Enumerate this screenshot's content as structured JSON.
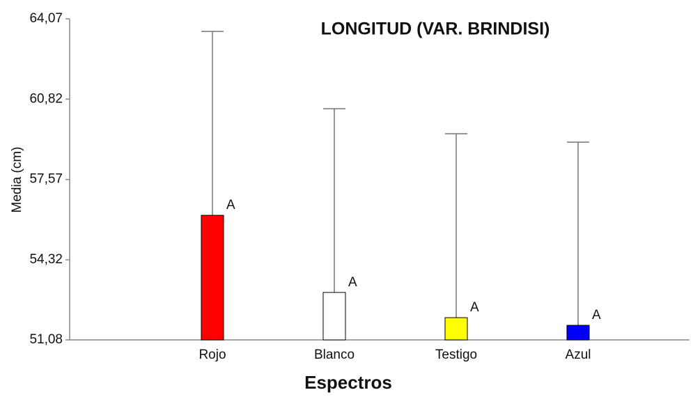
{
  "chart_data": {
    "type": "bar",
    "title": "LONGITUD (VAR. BRINDISI)",
    "x_label": "Espectros",
    "y_label": "Media (cm)",
    "categories": [
      "Rojo",
      "Blanco",
      "Testigo",
      "Azul"
    ],
    "values": [
      56.12,
      53.0,
      51.98,
      51.67
    ],
    "errors": [
      7.44,
      7.43,
      7.44,
      7.41
    ],
    "annotations": [
      "A",
      "A",
      "A",
      "A"
    ],
    "colors": [
      "#ff0000",
      "#ffffff",
      "#ffff00",
      "#0000ff"
    ],
    "ylim": [
      51.08,
      64.07
    ],
    "yticks": [
      {
        "value": 51.08,
        "label": "51,08"
      },
      {
        "value": 54.32,
        "label": "54,32"
      },
      {
        "value": 57.57,
        "label": "57,57"
      },
      {
        "value": 60.82,
        "label": "60,82"
      },
      {
        "value": 64.07,
        "label": "64,07"
      }
    ]
  }
}
